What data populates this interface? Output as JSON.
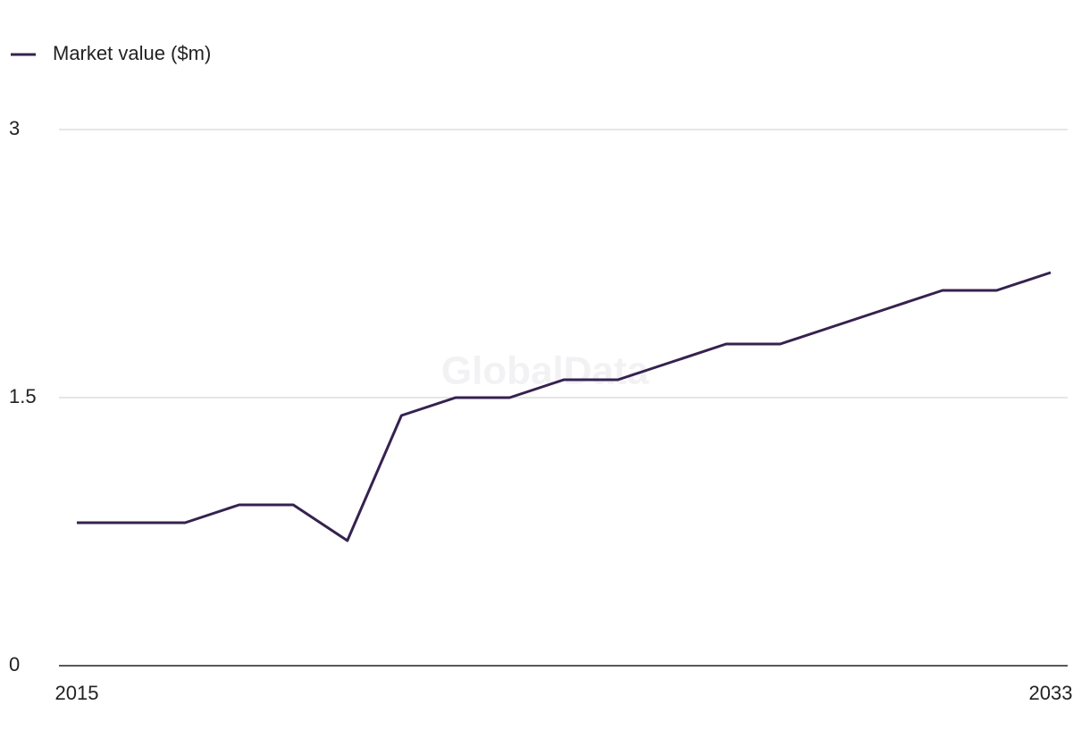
{
  "chart_data": {
    "type": "line",
    "legend": "top-left",
    "watermark": "GlobalData",
    "x": [
      2015,
      2016,
      2017,
      2018,
      2019,
      2020,
      2021,
      2022,
      2023,
      2024,
      2025,
      2026,
      2027,
      2028,
      2029,
      2030,
      2031,
      2032,
      2033
    ],
    "xlim": [
      2015,
      2033
    ],
    "xticks": [
      2015,
      2033
    ],
    "ylim": [
      0,
      3
    ],
    "yticks": [
      0,
      1.5,
      3
    ],
    "grid": true,
    "series": [
      {
        "name": "Market value ($m)",
        "color": "#35224f",
        "values": [
          0.8,
          0.8,
          0.8,
          0.9,
          0.9,
          0.7,
          1.4,
          1.5,
          1.5,
          1.6,
          1.6,
          1.7,
          1.8,
          1.8,
          1.9,
          2.0,
          2.1,
          2.1,
          2.2
        ]
      }
    ]
  }
}
